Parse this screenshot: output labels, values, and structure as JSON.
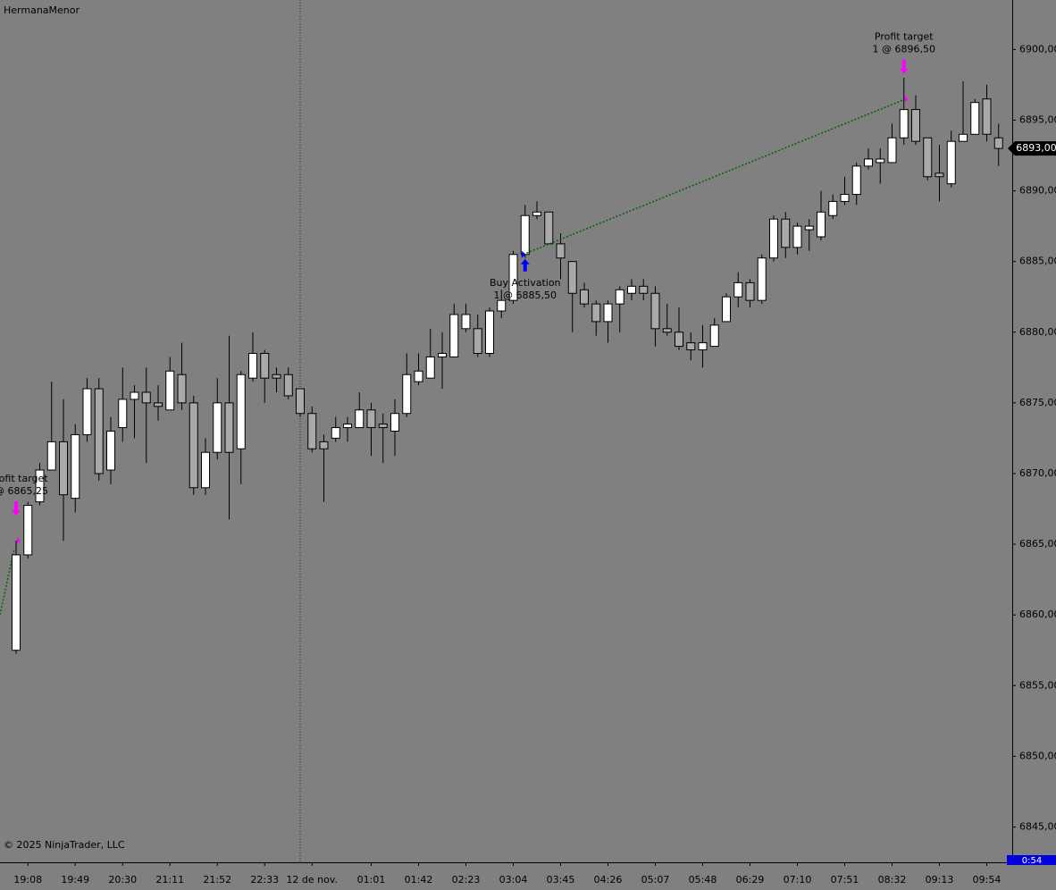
{
  "chart_data": {
    "type": "candlestick",
    "title": "HermanaMenor",
    "copyright": "© 2025 NinjaTrader, LLC",
    "categories": [
      null,
      "19:08",
      null,
      null,
      null,
      "19:49",
      null,
      null,
      null,
      "20:30",
      null,
      null,
      null,
      "21:11",
      null,
      null,
      null,
      "21:52",
      null,
      null,
      null,
      "22:33",
      null,
      null,
      null,
      "12 de nov.",
      null,
      null,
      null,
      null,
      "01:01",
      null,
      null,
      null,
      "01:42",
      null,
      null,
      null,
      "02:23",
      null,
      null,
      null,
      "03:04",
      null,
      null,
      null,
      "03:45",
      null,
      null,
      null,
      "04:26",
      null,
      null,
      null,
      "05:07",
      null,
      null,
      null,
      "05:48",
      null,
      null,
      null,
      "06:29",
      null,
      null,
      null,
      "07:10",
      null,
      null,
      null,
      "07:51",
      null,
      null,
      null,
      "08:32",
      null,
      null,
      null,
      "09:13",
      null,
      null,
      null,
      "09:54",
      null
    ],
    "series": [
      {
        "open": [
          6857.5,
          6864.25,
          6868,
          6870.25,
          6872.25,
          6868.25,
          6872.75,
          6876,
          6870.25,
          6873.25,
          6875.25,
          6875.75,
          6875,
          6874.5,
          6877,
          6875,
          6869,
          6871.5,
          6875,
          6871.75,
          6876.75,
          6878.5,
          6877,
          6877,
          6876,
          6874.25,
          6872.25,
          6872.5,
          6873.25,
          6873.25,
          6874.5,
          6873.5,
          6873,
          6874.25,
          6876.5,
          6876.75,
          6878.25,
          6878.25,
          6880.25,
          6880.25,
          6878.5,
          6881.5,
          6882.25,
          6885.5,
          6888.25,
          6888.5,
          6886.25,
          6885,
          6883,
          6882,
          6880.75,
          6882,
          6882.75,
          6883.25,
          6882.75,
          6880.25,
          6880,
          6879.25,
          6878.75,
          6879,
          6880.75,
          6882.5,
          6883.5,
          6882.25,
          6885.25,
          6888,
          6886,
          6887.25,
          6886.75,
          6888.25,
          6889.25,
          6889.75,
          6891.75,
          6892,
          6892,
          6893.75,
          6895.75,
          6893.75,
          6891.25,
          6890.5,
          6893.5,
          6894,
          6896.5,
          6893.75
        ],
        "high": [
          6865.25,
          6868,
          6870.75,
          6876.5,
          6875.25,
          6873.5,
          6876.75,
          6876.75,
          6874,
          6877.5,
          6876.25,
          6877.5,
          6876.25,
          6878.25,
          6879.25,
          6875.5,
          6872.5,
          6876.75,
          6879.75,
          6877.25,
          6880,
          6878.75,
          6877.5,
          6877.5,
          6876,
          6874.75,
          6872.75,
          6874,
          6874,
          6875.75,
          6875,
          6874.25,
          6875.25,
          6878.5,
          6878.5,
          6880.25,
          6880,
          6882,
          6882,
          6881.25,
          6881.75,
          6883,
          6885.75,
          6889,
          6889.25,
          6888.5,
          6887,
          6885,
          6883.5,
          6882.25,
          6882.25,
          6883.25,
          6883.75,
          6883.75,
          6883.25,
          6882,
          6881.75,
          6880,
          6880.5,
          6881,
          6882.75,
          6884.25,
          6883.75,
          6885.5,
          6888.25,
          6888.5,
          6887.75,
          6888,
          6890,
          6889.75,
          6891,
          6892,
          6893,
          6893,
          6894.75,
          6898,
          6896.75,
          6893.75,
          6893.25,
          6894.25,
          6897.75,
          6896.5,
          6897.5,
          6894.75
        ],
        "low": [
          6857.25,
          6864,
          6867.75,
          6870.25,
          6865.25,
          6867.25,
          6872.25,
          6869.5,
          6869.25,
          6872.25,
          6872.5,
          6870.75,
          6873.75,
          6874.5,
          6874.5,
          6868.5,
          6868.5,
          6871,
          6866.75,
          6869.25,
          6876.5,
          6875,
          6875.75,
          6875.25,
          6874,
          6871.5,
          6868,
          6872.25,
          6872.25,
          6873.25,
          6871.25,
          6870.75,
          6871.25,
          6874,
          6876.25,
          6876.75,
          6876,
          6878.25,
          6880,
          6878.25,
          6878.25,
          6881,
          6882,
          6885.25,
          6888,
          6886.25,
          6883.75,
          6880,
          6881.75,
          6879.75,
          6879.25,
          6880,
          6882.25,
          6882.25,
          6879,
          6879.75,
          6878.75,
          6878,
          6877.5,
          6879,
          6880.75,
          6881.75,
          6881.75,
          6882,
          6885,
          6885.25,
          6885.5,
          6885.75,
          6886.5,
          6888,
          6889,
          6889,
          6891.5,
          6890.5,
          6892,
          6893.25,
          6893.25,
          6890.75,
          6889.25,
          6890.25,
          6893.5,
          6894,
          6893.5,
          6891.75
        ],
        "close": [
          6864.25,
          6867.75,
          6870.25,
          6872.25,
          6868.5,
          6872.75,
          6876,
          6870,
          6873,
          6875.25,
          6875.75,
          6875,
          6874.75,
          6877.25,
          6875,
          6869,
          6871.5,
          6875,
          6871.5,
          6877,
          6878.5,
          6876.75,
          6876.75,
          6875.5,
          6874.25,
          6871.75,
          6871.75,
          6873.25,
          6873.5,
          6874.5,
          6873.25,
          6873.25,
          6874.25,
          6877,
          6877.25,
          6878.25,
          6878.5,
          6881.25,
          6881.25,
          6878.5,
          6881.5,
          6882.25,
          6885.5,
          6888.25,
          6888.5,
          6886.25,
          6885.25,
          6882.75,
          6882,
          6880.75,
          6882,
          6883,
          6883.25,
          6882.75,
          6880.25,
          6880,
          6879,
          6878.75,
          6879.25,
          6880.5,
          6882.5,
          6883.5,
          6882.25,
          6885.25,
          6888,
          6886,
          6887.5,
          6887.5,
          6888.5,
          6889.25,
          6889.75,
          6891.75,
          6892.25,
          6892.25,
          6893.75,
          6895.75,
          6893.5,
          6891,
          6891,
          6893.5,
          6894,
          6896.25,
          6894,
          6893
        ]
      }
    ],
    "up_color": "#ffffff",
    "down_color": "#a9a9a9",
    "ylim": [
      6842.5,
      6903.5
    ],
    "yticks": [
      {
        "value": 6845,
        "label": "6845,00"
      },
      {
        "value": 6850,
        "label": "6850,00"
      },
      {
        "value": 6855,
        "label": "6855,00"
      },
      {
        "value": 6860,
        "label": "6860,00"
      },
      {
        "value": 6865,
        "label": "6865,00"
      },
      {
        "value": 6870,
        "label": "6870,00"
      },
      {
        "value": 6875,
        "label": "6875,00"
      },
      {
        "value": 6880,
        "label": "6880,00"
      },
      {
        "value": 6885,
        "label": "6885,00"
      },
      {
        "value": 6890,
        "label": "6890,00"
      },
      {
        "value": 6895,
        "label": "6895,00"
      },
      {
        "value": 6900,
        "label": "6900,00"
      }
    ],
    "last_price": {
      "value": 6893,
      "label": "6893,00"
    },
    "timer": "0:54",
    "executions": [
      {
        "label": "Profit target",
        "detail": "1 @ 6896,50",
        "price": 6896.5,
        "bar": 75,
        "side": "sell"
      },
      {
        "label": "Buy Activation",
        "detail": "1 @ 6885,50",
        "price": 6885.5,
        "bar": 43,
        "side": "buy"
      },
      {
        "label": "rofit target",
        "detail": "@ 6865,25",
        "price": 6865.25,
        "bar": 0,
        "side": "sell"
      }
    ]
  }
}
